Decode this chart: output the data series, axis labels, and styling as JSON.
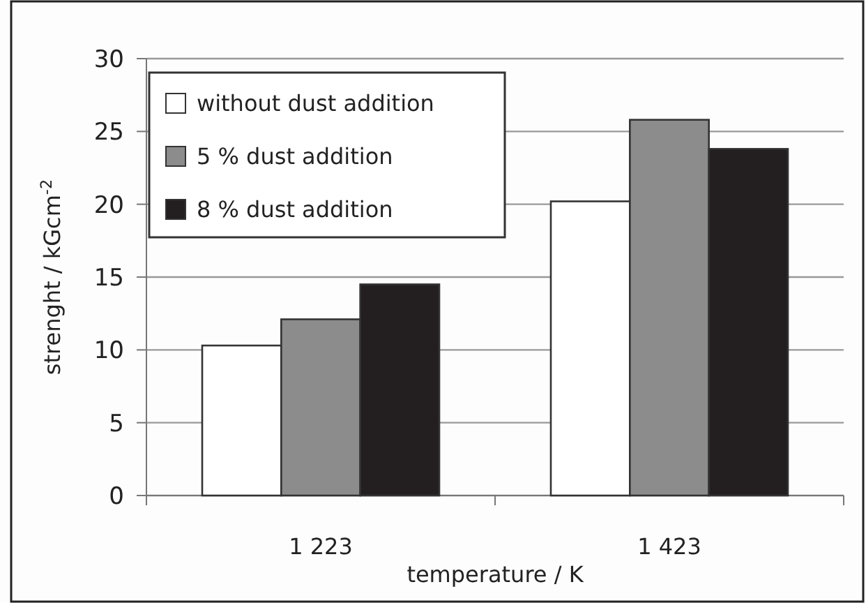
{
  "chart_data": {
    "type": "bar",
    "xlabel": "temperature / K",
    "ylabel": "strenght / kGcm$^{-2}$",
    "categories": [
      "1 223",
      "1 423"
    ],
    "series": [
      {
        "name": "without dust addition",
        "color": "#ffffff",
        "values": [
          10.3,
          20.2
        ]
      },
      {
        "name": "5 % dust addition",
        "color": "#8c8c8c",
        "values": [
          12.1,
          25.8
        ]
      },
      {
        "name": "8 % dust addition",
        "color": "#231f20",
        "values": [
          14.5,
          23.8
        ]
      }
    ],
    "ylim": [
      0,
      30
    ],
    "yticks": [
      0,
      5,
      10,
      15,
      20,
      25,
      30
    ],
    "grid": "y",
    "legend": "top left"
  }
}
